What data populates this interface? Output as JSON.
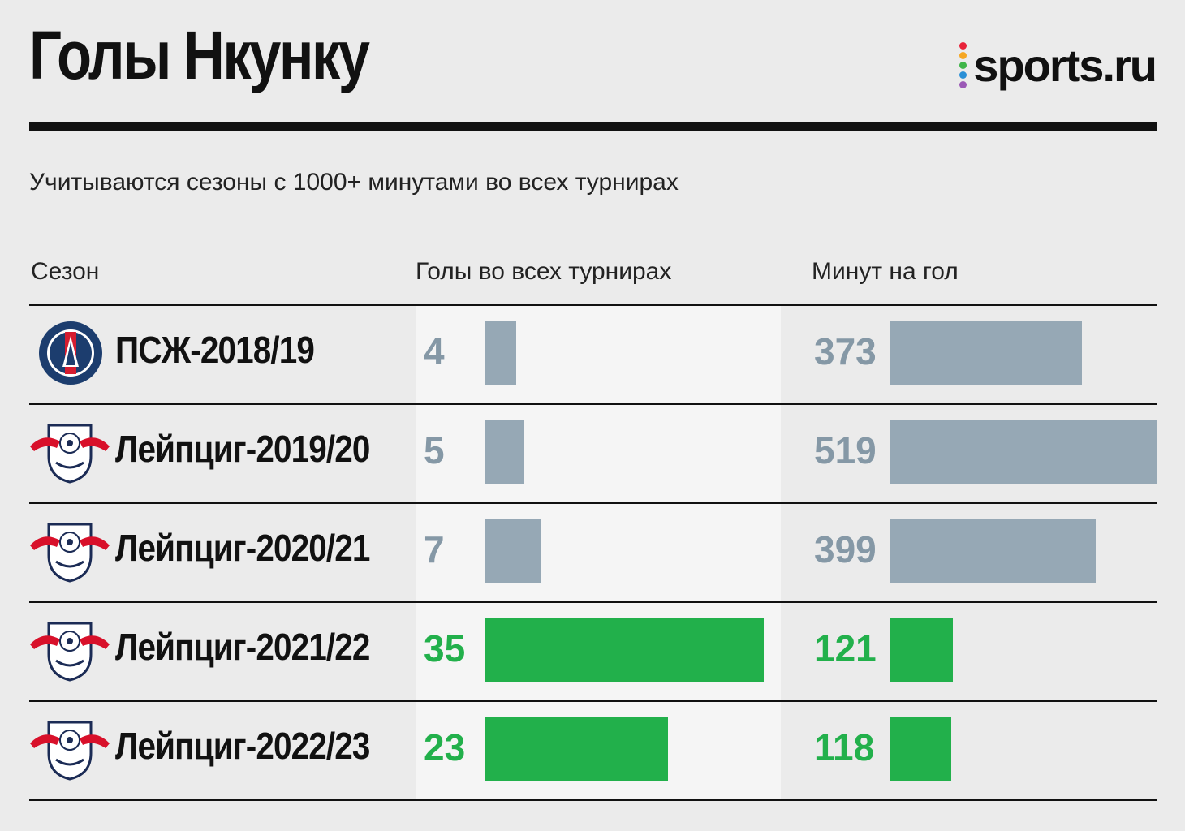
{
  "header": {
    "title": "Голы Нкунку",
    "logo_text": "sports.ru",
    "logo_dot_colors": [
      "#e8233a",
      "#f5a623",
      "#3fb549",
      "#2a8fd6",
      "#9b59b6"
    ],
    "subtitle": "Учитываются сезоны с 1000+ минутами во всех турнирах"
  },
  "columns": {
    "season": "Сезон",
    "goals": "Голы во всех турнирах",
    "minutes_per_goal": "Минут на гол"
  },
  "colors": {
    "highlight": "#22b04b",
    "muted": "#96a8b5",
    "muted_text": "#8598a6"
  },
  "chart_data": {
    "type": "bar",
    "categories": [
      "ПСЖ-2018/19",
      "Лейпциг-2019/20",
      "Лейпциг-2020/21",
      "Лейпциг-2021/22",
      "Лейпциг-2022/23"
    ],
    "series": [
      {
        "name": "Голы во всех турнирах",
        "values": [
          4,
          5,
          7,
          35,
          23
        ]
      },
      {
        "name": "Минут на гол",
        "values": [
          373,
          519,
          399,
          121,
          118
        ]
      }
    ],
    "club_logos": [
      "psg-crest",
      "rb-leipzig-crest",
      "rb-leipzig-crest",
      "rb-leipzig-crest",
      "rb-leipzig-crest"
    ],
    "highlighted": [
      false,
      false,
      false,
      true,
      true
    ]
  }
}
